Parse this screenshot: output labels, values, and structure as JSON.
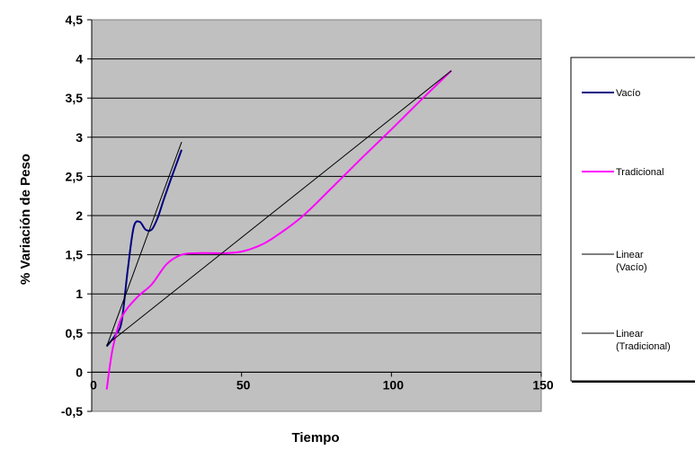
{
  "chart_data": {
    "type": "line",
    "xlabel": "Tiempo",
    "ylabel": "% Variación de Peso",
    "xlim": [
      0,
      150
    ],
    "ylim": [
      -0.5,
      4.5
    ],
    "x_ticks": [
      "0",
      "50",
      "100",
      "150"
    ],
    "y_ticks": [
      "-0,5",
      "0",
      "0,5",
      "1",
      "1,5",
      "2",
      "2,5",
      "3",
      "3,5",
      "4",
      "4,5"
    ],
    "grid": "horizontal",
    "legend_position": "right",
    "series": [
      {
        "name": "Vacío",
        "color": "#000080",
        "style": "smooth",
        "x": [
          5,
          8,
          10,
          12,
          14,
          16,
          18,
          20,
          22,
          24,
          26,
          28,
          30
        ],
        "y": [
          0.33,
          0.48,
          0.65,
          1.3,
          1.85,
          1.92,
          1.82,
          1.82,
          1.97,
          2.2,
          2.42,
          2.63,
          2.84
        ]
      },
      {
        "name": "Tradicional",
        "color": "#ff00ff",
        "style": "smooth",
        "x": [
          5,
          7,
          10,
          15,
          20,
          25,
          30,
          35,
          40,
          45,
          50,
          55,
          60,
          70,
          80,
          90,
          100,
          110,
          120
        ],
        "y": [
          -0.22,
          0.3,
          0.7,
          0.95,
          1.12,
          1.38,
          1.5,
          1.52,
          1.52,
          1.52,
          1.54,
          1.6,
          1.7,
          1.98,
          2.35,
          2.73,
          3.1,
          3.48,
          3.85
        ]
      },
      {
        "name": "Linear (Vacío)",
        "color": "#000000",
        "style": "straight",
        "x": [
          5,
          30
        ],
        "y": [
          0.33,
          2.94
        ]
      },
      {
        "name": "Linear (Tradicional)",
        "color": "#000000",
        "style": "straight",
        "x": [
          5,
          120
        ],
        "y": [
          0.35,
          3.85
        ]
      }
    ]
  }
}
